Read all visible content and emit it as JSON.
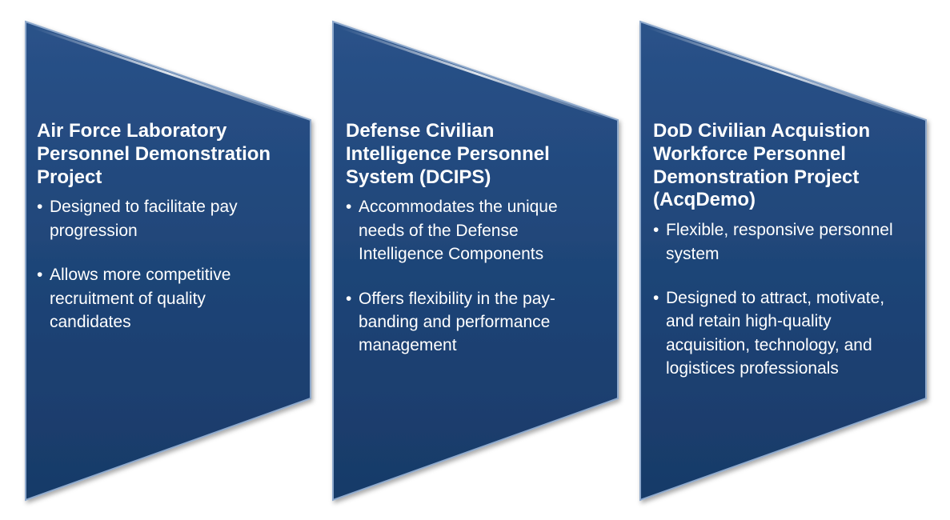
{
  "panels": [
    {
      "title": "Air Force Laboratory Personnel Demonstration Project",
      "bullets": [
        "Designed to facilitate pay progression",
        "Allows more competitive recruitment of quality candidates"
      ]
    },
    {
      "title": "Defense Civilian Intelligence Personnel System (DCIPS)",
      "bullets": [
        "Accommodates the unique needs of the Defense Intelligence Components",
        "Offers flexibility in the pay-banding and performance management"
      ]
    },
    {
      "title": "DoD Civilian Acquistion Workforce Personnel Demonstration Project (AcqDemo)",
      "bullets": [
        "Flexible, responsive personnel system",
        "Designed to attract, motivate, and retain high-quality acquisition, technology, and logistices professionals"
      ]
    }
  ],
  "colors": {
    "panel_fill": "#1f4578",
    "panel_fill_dark": "#173a66",
    "panel_border": "#8ea9cc",
    "text": "#ffffff"
  }
}
